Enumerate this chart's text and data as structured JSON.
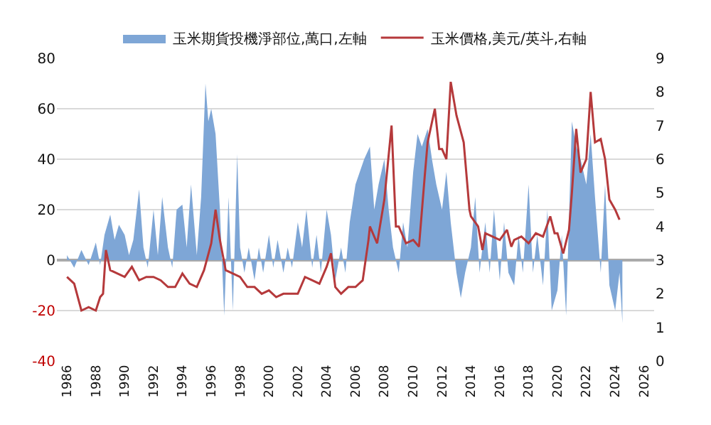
{
  "chart_data": {
    "type": "area",
    "x": [
      1986,
      1986.5,
      1987,
      1987.5,
      1988,
      1988.3,
      1988.6,
      1989,
      1989.3,
      1989.6,
      1990,
      1990.3,
      1990.6,
      1991,
      1991.3,
      1991.6,
      1992,
      1992.3,
      1992.6,
      1993,
      1993.3,
      1993.6,
      1994,
      1994.3,
      1994.6,
      1995,
      1995.3,
      1995.6,
      1995.8,
      1996,
      1996.3,
      1996.6,
      1996.9,
      1997.2,
      1997.5,
      1997.8,
      1998,
      1998.3,
      1998.6,
      1999,
      1999.3,
      1999.6,
      2000,
      2000.3,
      2000.6,
      2001,
      2001.3,
      2001.6,
      2002,
      2002.3,
      2002.6,
      2003,
      2003.3,
      2003.6,
      2004,
      2004.3,
      2004.6,
      2005,
      2005.3,
      2005.6,
      2006,
      2006.3,
      2006.6,
      2007,
      2007.3,
      2007.6,
      2008,
      2008.3,
      2008.6,
      2009,
      2009.3,
      2009.6,
      2010,
      2010.3,
      2010.6,
      2011,
      2011.3,
      2011.6,
      2012,
      2012.3,
      2012.6,
      2013,
      2013.3,
      2013.6,
      2014,
      2014.3,
      2014.6,
      2015,
      2015.3,
      2015.6,
      2016,
      2016.3,
      2016.6,
      2017,
      2017.3,
      2017.6,
      2018,
      2018.3,
      2018.6,
      2019,
      2019.3,
      2019.6,
      2020,
      2020.3,
      2020.6,
      2021,
      2021.3,
      2021.6,
      2022,
      2022.3,
      2022.6,
      2023,
      2023.3,
      2023.6,
      2024,
      2024.3,
      2024.5
    ],
    "series": [
      {
        "name": "玉米期貨投機淨部位,萬口,左軸",
        "color": "#7ea6d6",
        "values": [
          2,
          -3,
          4,
          -2,
          7,
          -2,
          10,
          18,
          8,
          14,
          10,
          2,
          8,
          28,
          5,
          -3,
          20,
          2,
          25,
          5,
          -3,
          20,
          22,
          5,
          30,
          2,
          25,
          70,
          55,
          60,
          50,
          20,
          -22,
          25,
          -20,
          42,
          5,
          -5,
          5,
          -8,
          5,
          -5,
          10,
          -3,
          8,
          -5,
          5,
          -3,
          15,
          5,
          20,
          -3,
          10,
          -5,
          20,
          10,
          -8,
          5,
          -5,
          15,
          30,
          35,
          40,
          45,
          20,
          30,
          40,
          20,
          5,
          -5,
          15,
          5,
          35,
          50,
          45,
          52,
          40,
          30,
          20,
          35,
          15,
          -5,
          -15,
          -5,
          5,
          25,
          -5,
          15,
          -5,
          20,
          -8,
          15,
          -5,
          -10,
          10,
          -5,
          30,
          -5,
          10,
          -10,
          20,
          -20,
          -12,
          10,
          -22,
          55,
          45,
          40,
          30,
          50,
          25,
          -5,
          30,
          -10,
          -20,
          -5,
          -25
        ]
      },
      {
        "name": "玉米價格,美元/英斗,右軸",
        "type": "line",
        "axis": "y2",
        "color": "#b5393b",
        "x": [
          1986,
          1986.5,
          1987,
          1987.5,
          1988,
          1988.3,
          1988.5,
          1988.7,
          1989,
          1989.5,
          1990,
          1990.5,
          1991,
          1991.5,
          1992,
          1992.5,
          1993,
          1993.5,
          1994,
          1994.5,
          1995,
          1995.5,
          1996,
          1996.3,
          1996.6,
          1997,
          1997.5,
          1998,
          1998.5,
          1999,
          1999.5,
          2000,
          2000.5,
          2001,
          2001.5,
          2002,
          2002.5,
          2003,
          2003.5,
          2004,
          2004.3,
          2004.6,
          2005,
          2005.5,
          2006,
          2006.5,
          2006.9,
          2007,
          2007.5,
          2008,
          2008.5,
          2008.8,
          2009,
          2009.5,
          2010,
          2010.4,
          2010.8,
          2011,
          2011.5,
          2011.8,
          2012,
          2012.3,
          2012.6,
          2013,
          2013.5,
          2013.9,
          2014,
          2014.5,
          2014.8,
          2015,
          2015.5,
          2016,
          2016.5,
          2016.8,
          2017,
          2017.5,
          2018,
          2018.5,
          2019,
          2019.5,
          2019.8,
          2020,
          2020.4,
          2020.8,
          2021,
          2021.3,
          2021.6,
          2022,
          2022.3,
          2022.6,
          2023,
          2023.3,
          2023.6,
          2024,
          2024.3
        ],
        "values": [
          2.5,
          2.3,
          1.5,
          1.6,
          1.5,
          1.9,
          2.0,
          3.3,
          2.7,
          2.6,
          2.5,
          2.8,
          2.4,
          2.5,
          2.5,
          2.4,
          2.2,
          2.2,
          2.6,
          2.3,
          2.2,
          2.7,
          3.5,
          4.5,
          3.6,
          2.7,
          2.6,
          2.5,
          2.2,
          2.2,
          2.0,
          2.1,
          1.9,
          2.0,
          2.0,
          2.0,
          2.5,
          2.4,
          2.3,
          2.8,
          3.2,
          2.2,
          2.0,
          2.2,
          2.2,
          2.4,
          3.6,
          4.0,
          3.5,
          4.8,
          7.0,
          4.0,
          4.0,
          3.5,
          3.6,
          3.4,
          5.5,
          6.5,
          7.5,
          6.3,
          6.3,
          6.0,
          8.3,
          7.3,
          6.5,
          4.5,
          4.3,
          4.0,
          3.3,
          3.8,
          3.7,
          3.6,
          3.9,
          3.4,
          3.6,
          3.7,
          3.5,
          3.8,
          3.7,
          4.3,
          3.8,
          3.8,
          3.2,
          3.9,
          5.0,
          6.9,
          5.6,
          6.0,
          8.0,
          6.5,
          6.6,
          6.0,
          4.8,
          4.5,
          4.2
        ]
      }
    ],
    "xlim": [
      1985.3,
      2026.7
    ],
    "xticks": [
      1986,
      1988,
      1990,
      1992,
      1994,
      1996,
      1998,
      2000,
      2002,
      2004,
      2006,
      2008,
      2010,
      2012,
      2014,
      2016,
      2018,
      2020,
      2022,
      2024,
      2026
    ],
    "ylim": [
      -40,
      80
    ],
    "yticks": [
      -40,
      -20,
      0,
      20,
      40,
      60,
      80
    ],
    "y2lim": [
      0,
      9
    ],
    "y2ticks": [
      0,
      1,
      2,
      3,
      4,
      5,
      6,
      7,
      8,
      9
    ],
    "grid": "y",
    "legend": "top"
  }
}
